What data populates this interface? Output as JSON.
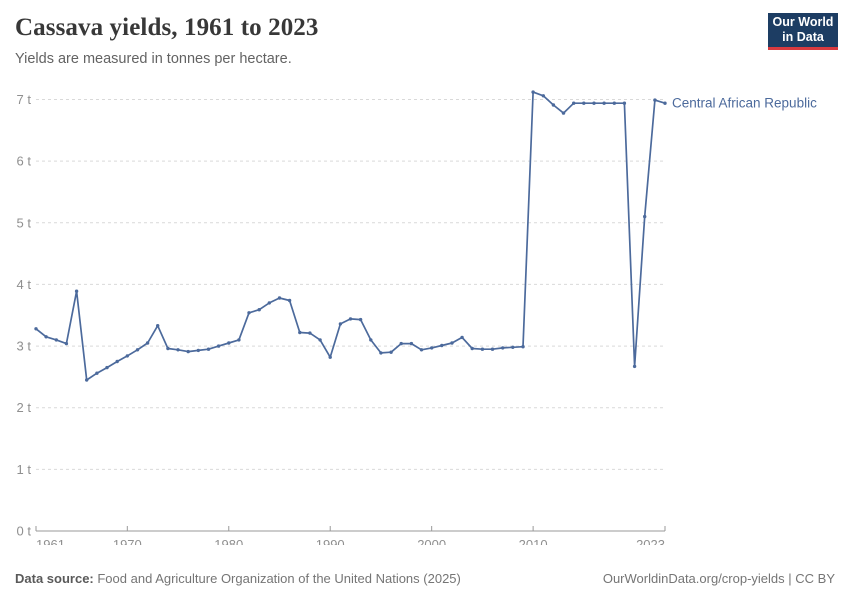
{
  "header": {
    "title": "Cassava yields, 1961 to 2023",
    "subtitle": "Yields are measured in tonnes per hectare."
  },
  "logo": {
    "line1": "Our World",
    "line2": "in Data",
    "bg_color": "#1d3d63",
    "accent_color": "#d93a3f"
  },
  "chart_data": {
    "type": "line",
    "title": "Cassava yields, 1961 to 2023",
    "ylabel": "tonnes per hectare",
    "unit_suffix": " t",
    "x_start": 1961,
    "x_end": 2023,
    "x_ticks": [
      1961,
      1970,
      1980,
      1990,
      2000,
      2010,
      2023
    ],
    "y_ticks": [
      0,
      1,
      2,
      3,
      4,
      5,
      6,
      7
    ],
    "ylim": [
      0,
      7.3
    ],
    "grid": "horizontal-dashed",
    "legend_position": "end-of-line-label",
    "grid_color": "#d9d9d9",
    "axis_color": "#999999",
    "tick_label_color": "#8f8f8f",
    "series": [
      {
        "name": "Central African Republic",
        "color": "#4C6A9C",
        "x": [
          1961,
          1962,
          1963,
          1964,
          1965,
          1966,
          1967,
          1968,
          1969,
          1970,
          1971,
          1972,
          1973,
          1974,
          1975,
          1976,
          1977,
          1978,
          1979,
          1980,
          1981,
          1982,
          1983,
          1984,
          1985,
          1986,
          1987,
          1988,
          1989,
          1990,
          1991,
          1992,
          1993,
          1994,
          1995,
          1996,
          1997,
          1998,
          1999,
          2000,
          2001,
          2002,
          2003,
          2004,
          2005,
          2006,
          2007,
          2008,
          2009,
          2010,
          2011,
          2012,
          2013,
          2014,
          2015,
          2016,
          2017,
          2018,
          2019,
          2020,
          2021,
          2022,
          2023
        ],
        "values": [
          3.28,
          3.15,
          3.1,
          3.04,
          3.89,
          2.45,
          2.56,
          2.65,
          2.75,
          2.84,
          2.94,
          3.05,
          3.33,
          2.96,
          2.94,
          2.91,
          2.93,
          2.95,
          3.0,
          3.05,
          3.1,
          3.54,
          3.59,
          3.7,
          3.78,
          3.74,
          3.22,
          3.21,
          3.1,
          2.82,
          3.36,
          3.44,
          3.43,
          3.1,
          2.89,
          2.9,
          3.04,
          3.04,
          2.94,
          2.97,
          3.01,
          3.05,
          3.14,
          2.96,
          2.95,
          2.95,
          2.97,
          2.98,
          2.99,
          7.12,
          7.06,
          6.91,
          6.78,
          6.94,
          6.94,
          6.94,
          6.94,
          6.94,
          6.94,
          2.67,
          5.1,
          6.99,
          6.94
        ]
      }
    ]
  },
  "footer": {
    "source_label": "Data source:",
    "source_text": " Food and Agriculture Organization of the United Nations (2025)",
    "credit": "OurWorldinData.org/crop-yields | CC BY"
  }
}
